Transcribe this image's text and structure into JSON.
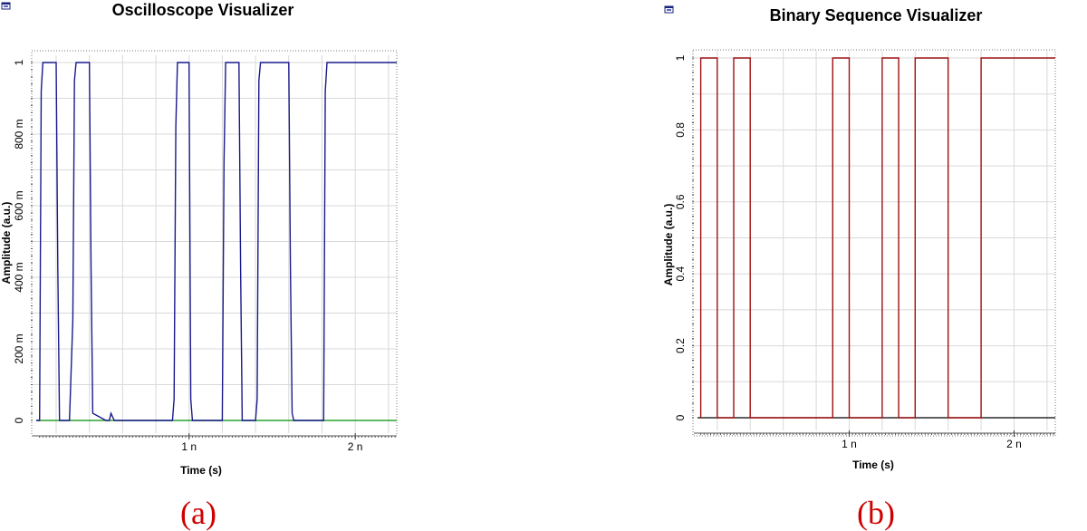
{
  "panels": [
    {
      "caption": "(a)",
      "icon": "window-icon"
    },
    {
      "caption": "(b)",
      "icon": "window-icon"
    }
  ],
  "chart_data": [
    {
      "type": "line",
      "title": "Oscilloscope Visualizer",
      "xlabel": "Time (s)",
      "ylabel": "Amplitude (a.u.)",
      "xlim": [
        0.08,
        2.25
      ],
      "ylim": [
        -0.05,
        1.08
      ],
      "x_ticks": [
        1,
        2
      ],
      "x_tick_labels": [
        "1 n",
        "2 n"
      ],
      "y_ticks": [
        0,
        0.2,
        0.4,
        0.6,
        0.8,
        1
      ],
      "y_tick_labels": [
        "0",
        "200 m",
        "400 m",
        "600 m",
        "800 m",
        "1"
      ],
      "grid": true,
      "x_unit": "ns",
      "colors": {
        "signal": "#1a1a8c",
        "baseline": "#2ca02c"
      },
      "series": [
        {
          "x": [
            0.08,
            0.1,
            0.11,
            0.12,
            0.2,
            0.21,
            0.22,
            0.28,
            0.3,
            0.31,
            0.32,
            0.4,
            0.41,
            0.42,
            0.5,
            0.52,
            0.53,
            0.55,
            0.7,
            0.9,
            0.91,
            0.92,
            0.93,
            1.0,
            1.01,
            1.02,
            1.2,
            1.21,
            1.22,
            1.23,
            1.3,
            1.31,
            1.32,
            1.33,
            1.4,
            1.41,
            1.42,
            1.43,
            1.6,
            1.61,
            1.62,
            1.63,
            1.8,
            1.81,
            1.82,
            1.83,
            2.25
          ],
          "y": [
            0.0,
            0.0,
            0.92,
            1.0,
            1.0,
            0.43,
            0.0,
            0.0,
            0.28,
            0.95,
            1.0,
            1.0,
            0.43,
            0.02,
            0.0,
            0.0,
            0.02,
            0.0,
            0.0,
            0.0,
            0.06,
            0.82,
            1.0,
            1.0,
            0.06,
            0.0,
            0.0,
            0.72,
            1.0,
            1.0,
            1.0,
            0.43,
            0.0,
            0.0,
            0.0,
            0.06,
            0.95,
            1.0,
            1.0,
            0.43,
            0.02,
            0.0,
            0.0,
            0.0,
            0.92,
            1.0,
            1.0
          ]
        },
        {
          "x": [
            0.08,
            2.25
          ],
          "y": [
            0,
            0
          ]
        }
      ]
    },
    {
      "type": "line",
      "title": "Binary Sequence Visualizer",
      "xlabel": "Time (s)",
      "ylabel": "Amplitude (a.u.)",
      "xlim": [
        0.08,
        2.25
      ],
      "ylim": [
        -0.05,
        1.0
      ],
      "x_ticks": [
        1,
        2
      ],
      "x_tick_labels": [
        "1 n",
        "2 n"
      ],
      "y_ticks": [
        0,
        0.2,
        0.4,
        0.6,
        0.8,
        1
      ],
      "y_tick_labels": [
        "0",
        "0.2",
        "0.4",
        "0.6",
        "0.8",
        "1"
      ],
      "grid": true,
      "x_unit": "ns",
      "colors": {
        "signal": "#a01010",
        "baseline": "#000000"
      },
      "series": [
        {
          "x": [
            0.1,
            0.1,
            0.2,
            0.2,
            0.3,
            0.3,
            0.4,
            0.4,
            0.9,
            0.9,
            1.0,
            1.0,
            1.2,
            1.2,
            1.3,
            1.3,
            1.4,
            1.4,
            1.6,
            1.6,
            1.8,
            1.8,
            2.25
          ],
          "y": [
            0,
            1,
            1,
            0,
            0,
            1,
            1,
            0,
            0,
            1,
            1,
            0,
            0,
            1,
            1,
            0,
            0,
            1,
            1,
            0,
            0,
            1,
            1
          ]
        }
      ]
    }
  ]
}
